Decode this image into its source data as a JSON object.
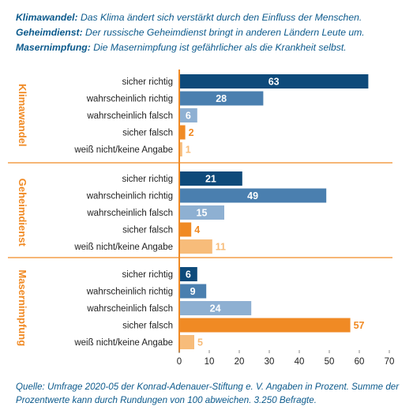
{
  "header": {
    "statements": [
      {
        "topic": "Klimawandel:",
        "text": "Das Klima ändert sich verstärkt durch den Einfluss der Menschen."
      },
      {
        "topic": "Geheimdienst:",
        "text": "Der russische Geheimdienst bringt in anderen Ländern Leute um."
      },
      {
        "topic": "Masernimpfung:",
        "text": "Die Masernimpfung ist gefährlicher als die Krankheit selbst."
      }
    ]
  },
  "chart_data": {
    "type": "bar",
    "orientation": "horizontal",
    "categories": [
      "sicher richtig",
      "wahrscheinlich richtig",
      "wahrscheinlich falsch",
      "sicher falsch",
      "weiß nicht/keine Angabe"
    ],
    "category_colors": [
      "#0e4a7a",
      "#4a7faf",
      "#8eb0d2",
      "#f08a24",
      "#f7bc7a"
    ],
    "label_colors": [
      "#ffffff",
      "#ffffff",
      "#ffffff",
      "#f08a24",
      "#f7bc7a"
    ],
    "groups": [
      {
        "name": "Klimawandel",
        "values": [
          63,
          28,
          6,
          2,
          1
        ]
      },
      {
        "name": "Geheimdienst",
        "values": [
          21,
          49,
          15,
          4,
          11
        ]
      },
      {
        "name": "Masernimpfung",
        "values": [
          6,
          9,
          24,
          57,
          5
        ]
      }
    ],
    "xlim": [
      0,
      70
    ],
    "xticks": [
      0,
      10,
      20,
      30,
      40,
      50,
      60,
      70
    ],
    "grid": false,
    "separator_color": "#f08a24",
    "axis_color": "#f08a24"
  },
  "footer": {
    "source": "Quelle: Umfrage 2020-05 der Konrad-Adenauer-Stiftung e. V. Angaben in Prozent. Summe der Prozentwerte kann durch Rundungen von 100 abweichen. 3.250 Befragte."
  }
}
